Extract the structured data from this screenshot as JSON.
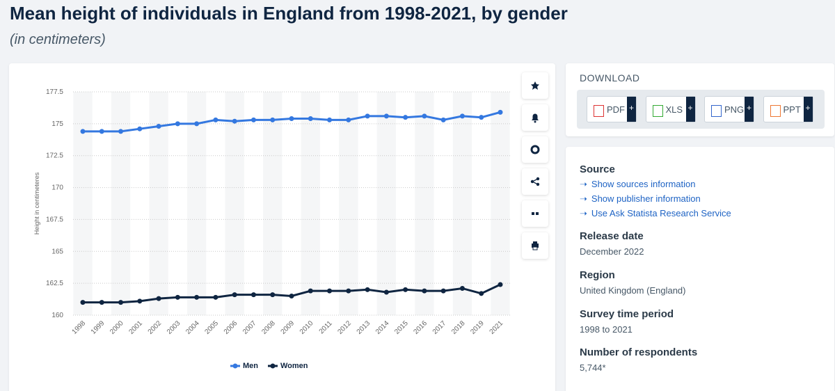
{
  "header": {
    "title": "Mean height of individuals in England from 1998-2021, by gender",
    "subtitle": "(in centimeters)"
  },
  "chart_data": {
    "type": "line",
    "categories": [
      "1998",
      "1999",
      "2000",
      "2001",
      "2002",
      "2003",
      "2004",
      "2005",
      "2006",
      "2007",
      "2008",
      "2009",
      "2010",
      "2011",
      "2012",
      "2013",
      "2014",
      "2015",
      "2016",
      "2017",
      "2018",
      "2019",
      "2021"
    ],
    "series": [
      {
        "name": "Men",
        "color": "#3478e0",
        "values": [
          174.4,
          174.4,
          174.4,
          174.6,
          174.8,
          175.0,
          175.0,
          175.3,
          175.2,
          175.3,
          175.3,
          175.4,
          175.4,
          175.3,
          175.3,
          175.6,
          175.6,
          175.5,
          175.6,
          175.3,
          175.6,
          175.5,
          175.9
        ]
      },
      {
        "name": "Women",
        "color": "#0f2541",
        "values": [
          161.0,
          161.0,
          161.0,
          161.1,
          161.3,
          161.4,
          161.4,
          161.4,
          161.6,
          161.6,
          161.6,
          161.5,
          161.9,
          161.9,
          161.9,
          162.0,
          161.8,
          162.0,
          161.9,
          161.9,
          162.1,
          161.7,
          162.4
        ]
      }
    ],
    "y_label": "Height in centimeteres",
    "ylim": [
      160,
      177.5
    ],
    "yticks": [
      160,
      162.5,
      165,
      167.5,
      170,
      172.5,
      175,
      177.5
    ],
    "grid": true,
    "legend": "bottom"
  },
  "download": {
    "title": "DOWNLOAD",
    "formats": [
      "PDF",
      "XLS",
      "PNG",
      "PPT"
    ],
    "plus": "+"
  },
  "details": {
    "source": {
      "title": "Source",
      "links": [
        "Show sources information",
        "Show publisher information",
        "Use Ask Statista Research Service"
      ]
    },
    "items": [
      {
        "label": "Release date",
        "value": "December 2022"
      },
      {
        "label": "Region",
        "value": "United Kingdom (England)"
      },
      {
        "label": "Survey time period",
        "value": "1998 to 2021"
      },
      {
        "label": "Number of respondents",
        "value": "5,744*"
      }
    ]
  }
}
